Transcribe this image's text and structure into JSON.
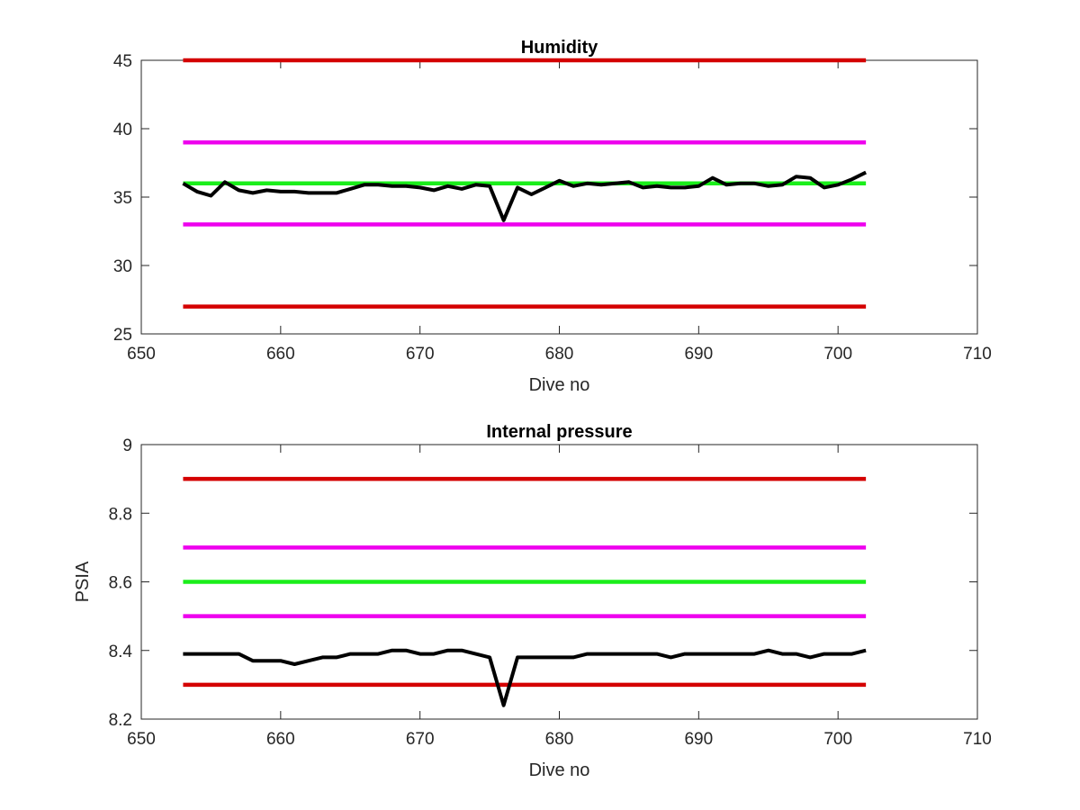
{
  "chart_data": [
    {
      "type": "line",
      "title": "Humidity",
      "xlabel": "Dive no",
      "ylabel": "",
      "xlim": [
        650,
        710
      ],
      "ylim": [
        25,
        45
      ],
      "xticks": [
        "650",
        "660",
        "670",
        "680",
        "690",
        "700",
        "710"
      ],
      "yticks": [
        "25",
        "30",
        "35",
        "40",
        "45"
      ],
      "grid": false,
      "reference_lines": [
        {
          "y": 45,
          "x": [
            653,
            702
          ],
          "color": "#d40000"
        },
        {
          "y": 39,
          "x": [
            653,
            702
          ],
          "color": "#ee00ee"
        },
        {
          "y": 36,
          "x": [
            653,
            702
          ],
          "color": "#1aee1a"
        },
        {
          "y": 33,
          "x": [
            653,
            702
          ],
          "color": "#ee00ee"
        },
        {
          "y": 27,
          "x": [
            653,
            702
          ],
          "color": "#d40000"
        }
      ],
      "series": [
        {
          "color": "#000000",
          "x": [
            653,
            654,
            655,
            656,
            657,
            658,
            659,
            660,
            661,
            662,
            663,
            664,
            665,
            666,
            667,
            668,
            669,
            670,
            671,
            672,
            673,
            674,
            675,
            676,
            677,
            678,
            679,
            680,
            681,
            682,
            683,
            684,
            685,
            686,
            687,
            688,
            689,
            690,
            691,
            692,
            693,
            694,
            695,
            696,
            697,
            698,
            699,
            700,
            701,
            702
          ],
          "values": [
            36,
            35.4,
            35.1,
            36.1,
            35.5,
            35.3,
            35.5,
            35.4,
            35.4,
            35.3,
            35.3,
            35.3,
            35.6,
            35.9,
            35.9,
            35.8,
            35.8,
            35.7,
            35.5,
            35.8,
            35.6,
            35.9,
            35.8,
            33.3,
            35.7,
            35.2,
            35.7,
            36.2,
            35.8,
            36,
            35.9,
            36,
            36.1,
            35.7,
            35.8,
            35.7,
            35.7,
            35.8,
            36.4,
            35.9,
            36,
            36,
            35.8,
            35.9,
            36.5,
            36.4,
            35.7,
            35.9,
            36.3,
            36.8
          ]
        }
      ]
    },
    {
      "type": "line",
      "title": "Internal pressure",
      "xlabel": "Dive no",
      "ylabel": "PSIA",
      "xlim": [
        650,
        710
      ],
      "ylim": [
        8.2,
        9
      ],
      "xticks": [
        "650",
        "660",
        "670",
        "680",
        "690",
        "700",
        "710"
      ],
      "yticks": [
        "8.2",
        "8.4",
        "8.6",
        "8.8",
        "9"
      ],
      "grid": false,
      "reference_lines": [
        {
          "y": 8.9,
          "x": [
            653,
            702
          ],
          "color": "#d40000"
        },
        {
          "y": 8.7,
          "x": [
            653,
            702
          ],
          "color": "#ee00ee"
        },
        {
          "y": 8.6,
          "x": [
            653,
            702
          ],
          "color": "#1aee1a"
        },
        {
          "y": 8.5,
          "x": [
            653,
            702
          ],
          "color": "#ee00ee"
        },
        {
          "y": 8.3,
          "x": [
            653,
            702
          ],
          "color": "#d40000"
        }
      ],
      "series": [
        {
          "color": "#000000",
          "x": [
            653,
            654,
            655,
            656,
            657,
            658,
            659,
            660,
            661,
            662,
            663,
            664,
            665,
            666,
            667,
            668,
            669,
            670,
            671,
            672,
            673,
            674,
            675,
            676,
            677,
            678,
            679,
            680,
            681,
            682,
            683,
            684,
            685,
            686,
            687,
            688,
            689,
            690,
            691,
            692,
            693,
            694,
            695,
            696,
            697,
            698,
            699,
            700,
            701,
            702
          ],
          "values": [
            8.39,
            8.39,
            8.39,
            8.39,
            8.39,
            8.37,
            8.37,
            8.37,
            8.36,
            8.37,
            8.38,
            8.38,
            8.39,
            8.39,
            8.39,
            8.4,
            8.4,
            8.39,
            8.39,
            8.4,
            8.4,
            8.39,
            8.38,
            8.24,
            8.38,
            8.38,
            8.38,
            8.38,
            8.38,
            8.39,
            8.39,
            8.39,
            8.39,
            8.39,
            8.39,
            8.38,
            8.39,
            8.39,
            8.39,
            8.39,
            8.39,
            8.39,
            8.4,
            8.39,
            8.39,
            8.38,
            8.39,
            8.39,
            8.39,
            8.4
          ]
        }
      ]
    }
  ]
}
